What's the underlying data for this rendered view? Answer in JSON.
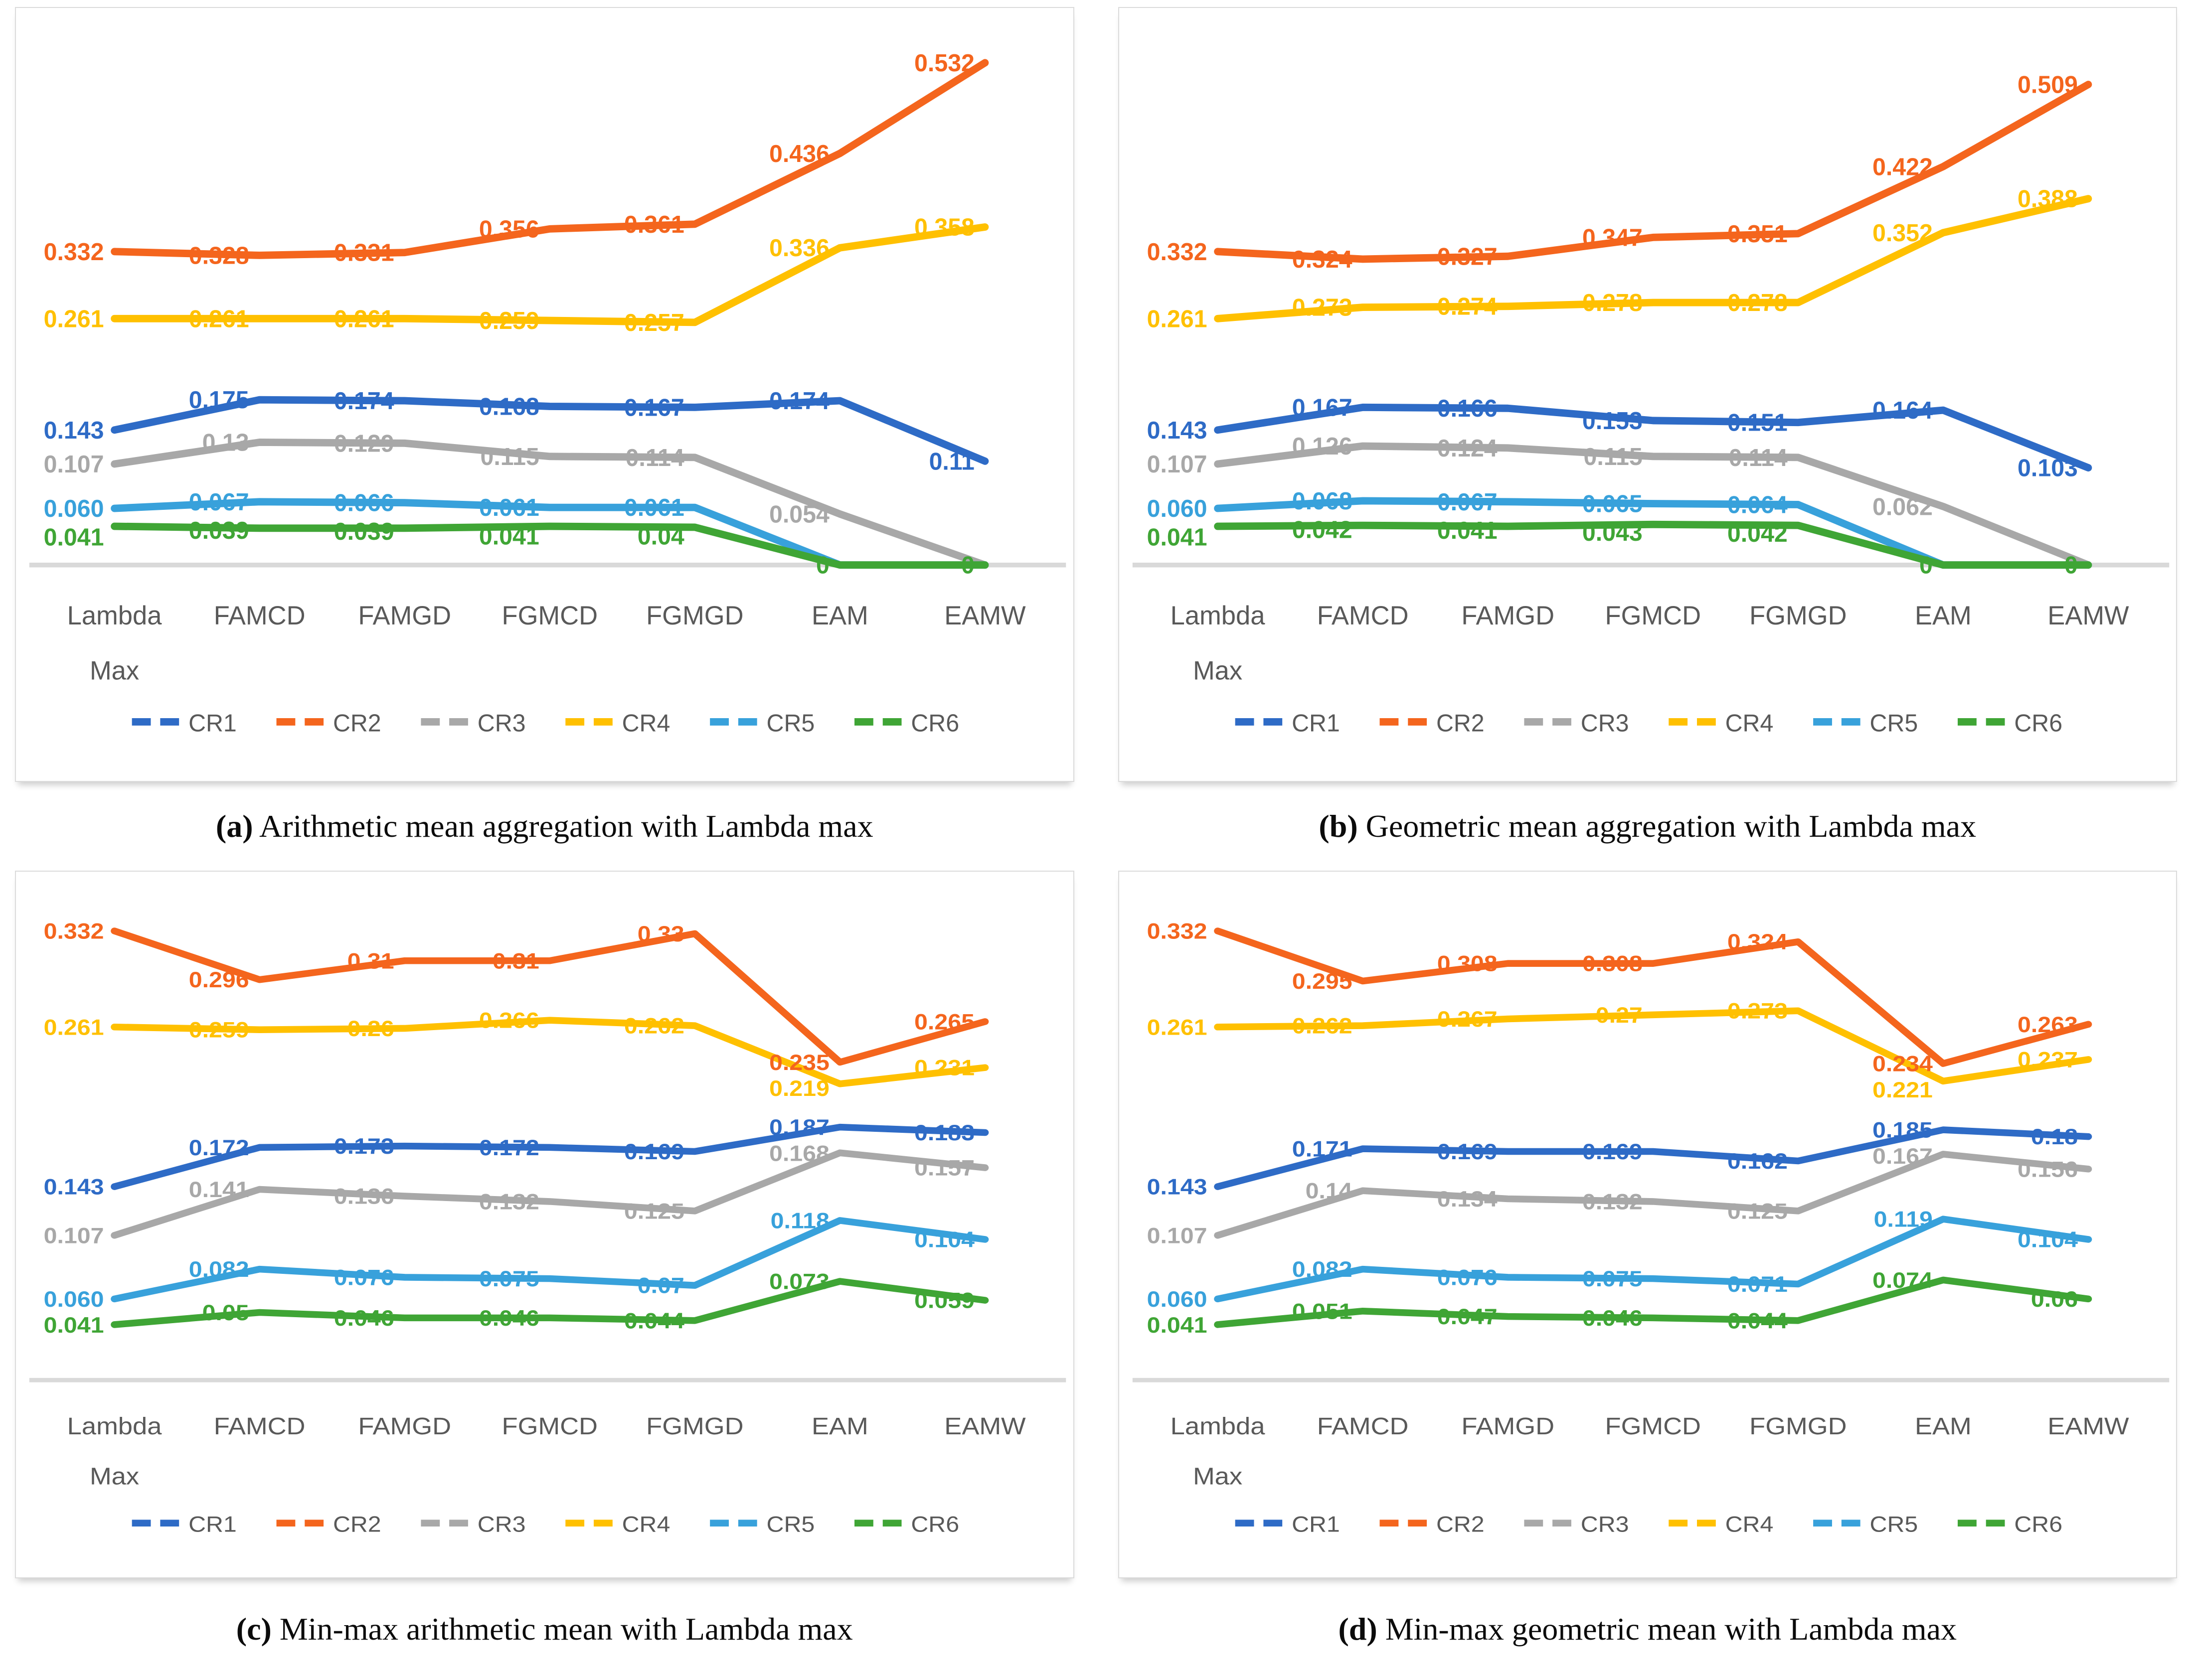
{
  "colors": {
    "CR1": "#2E6BC6",
    "CR2": "#F4651D",
    "CR3": "#A8A8A8",
    "CR4": "#FFC000",
    "CR5": "#38A1DB",
    "CR6": "#3FA535",
    "axis_line": "#D9D9D9",
    "axis_text": "#595959"
  },
  "chart_data": [
    {
      "type": "line",
      "caption_label": "(a)",
      "caption_text": " Arithmetic mean aggregation with Lambda max",
      "categories": [
        "Lambda Max",
        "FAMCD",
        "FAMGD",
        "FGMCD",
        "FGMGD",
        "EAM",
        "EAMW"
      ],
      "ylim": [
        0,
        0.55
      ],
      "grid": false,
      "legend_position": "bottom",
      "legend": [
        "CR1",
        "CR2",
        "CR3",
        "CR4",
        "CR5",
        "CR6"
      ],
      "series": [
        {
          "name": "CR1",
          "values": [
            0.143,
            0.175,
            0.174,
            0.168,
            0.167,
            0.174,
            0.11
          ],
          "labels": [
            "0.143",
            "0.175",
            "0.174",
            "0.168",
            "0.167",
            "0.174",
            "0.11"
          ]
        },
        {
          "name": "CR2",
          "values": [
            0.332,
            0.328,
            0.331,
            0.356,
            0.361,
            0.436,
            0.532
          ],
          "labels": [
            "0.332",
            "0.328",
            "0.331",
            "0.356",
            "0.361",
            "0.436",
            "0.532"
          ]
        },
        {
          "name": "CR3",
          "values": [
            0.107,
            0.13,
            0.129,
            0.115,
            0.114,
            0.054,
            0
          ],
          "labels": [
            "0.107",
            "0.13",
            "0.129",
            "0.115",
            "0.114",
            "0.054",
            ""
          ]
        },
        {
          "name": "CR4",
          "values": [
            0.261,
            0.261,
            0.261,
            0.259,
            0.257,
            0.336,
            0.358
          ],
          "labels": [
            "0.261",
            "0.261",
            "0.261",
            "0.259",
            "0.257",
            "0.336",
            "0.358"
          ]
        },
        {
          "name": "CR5",
          "values": [
            0.06,
            0.067,
            0.066,
            0.061,
            0.061,
            0,
            0
          ],
          "labels": [
            "0.060",
            "0.067",
            "0.066",
            "0.061",
            "0.061",
            "",
            ""
          ]
        },
        {
          "name": "CR6",
          "values": [
            0.041,
            0.039,
            0.039,
            0.041,
            0.04,
            0,
            0
          ],
          "labels": [
            "0.041",
            "0.039",
            "0.039",
            "0.041",
            "0.04",
            "0",
            "0"
          ]
        }
      ]
    },
    {
      "type": "line",
      "caption_label": "(b)",
      "caption_text": " Geometric mean aggregation with Lambda max",
      "categories": [
        "Lambda Max",
        "FAMCD",
        "FAMGD",
        "FGMCD",
        "FGMGD",
        "EAM",
        "EAMW"
      ],
      "ylim": [
        0,
        0.55
      ],
      "grid": false,
      "legend_position": "bottom",
      "legend": [
        "CR1",
        "CR2",
        "CR3",
        "CR4",
        "CR5",
        "CR6"
      ],
      "series": [
        {
          "name": "CR1",
          "values": [
            0.143,
            0.167,
            0.166,
            0.153,
            0.151,
            0.164,
            0.103
          ],
          "labels": [
            "0.143",
            "0.167",
            "0.166",
            "0.153",
            "0.151",
            "0.164",
            "0.103"
          ]
        },
        {
          "name": "CR2",
          "values": [
            0.332,
            0.324,
            0.327,
            0.347,
            0.351,
            0.422,
            0.509
          ],
          "labels": [
            "0.332",
            "0.324",
            "0.327",
            "0.347",
            "0.351",
            "0.422",
            "0.509"
          ]
        },
        {
          "name": "CR3",
          "values": [
            0.107,
            0.126,
            0.124,
            0.115,
            0.114,
            0.062,
            0
          ],
          "labels": [
            "0.107",
            "0.126",
            "0.124",
            "0.115",
            "0.114",
            "0.062",
            ""
          ]
        },
        {
          "name": "CR4",
          "values": [
            0.261,
            0.273,
            0.274,
            0.278,
            0.278,
            0.352,
            0.388
          ],
          "labels": [
            "0.261",
            "0.273",
            "0.274",
            "0.278",
            "0.278",
            "0.352",
            "0.388"
          ]
        },
        {
          "name": "CR5",
          "values": [
            0.06,
            0.068,
            0.067,
            0.065,
            0.064,
            0,
            0
          ],
          "labels": [
            "0.060",
            "0.068",
            "0.067",
            "0.065",
            "0.064",
            "",
            ""
          ]
        },
        {
          "name": "CR6",
          "values": [
            0.041,
            0.042,
            0.041,
            0.043,
            0.042,
            0,
            0
          ],
          "labels": [
            "0.041",
            "0.042",
            "0.041",
            "0.043",
            "0.042",
            "0",
            "0"
          ]
        }
      ]
    },
    {
      "type": "line",
      "caption_label": "(c)",
      "caption_text": " Min-max arithmetic mean with Lambda max",
      "categories": [
        "Lambda Max",
        "FAMCD",
        "FAMGD",
        "FGMCD",
        "FGMGD",
        "EAM",
        "EAMW"
      ],
      "ylim": [
        0,
        0.35
      ],
      "grid": false,
      "legend_position": "bottom",
      "legend": [
        "CR1",
        "CR2",
        "CR3",
        "CR4",
        "CR5",
        "CR6"
      ],
      "series": [
        {
          "name": "CR1",
          "values": [
            0.143,
            0.172,
            0.173,
            0.172,
            0.169,
            0.187,
            0.183
          ],
          "labels": [
            "0.143",
            "0.172",
            "0.173",
            "0.172",
            "0.169",
            "0.187",
            "0.183"
          ]
        },
        {
          "name": "CR2",
          "values": [
            0.332,
            0.296,
            0.31,
            0.31,
            0.33,
            0.235,
            0.265
          ],
          "labels": [
            "0.332",
            "0.296",
            "0.31",
            "0.31",
            "0.33",
            "0.235",
            "0.265"
          ]
        },
        {
          "name": "CR3",
          "values": [
            0.107,
            0.141,
            0.136,
            0.132,
            0.125,
            0.168,
            0.157
          ],
          "labels": [
            "0.107",
            "0.141",
            "0.136",
            "0.132",
            "0.125",
            "0.168",
            "0.157"
          ]
        },
        {
          "name": "CR4",
          "values": [
            0.261,
            0.259,
            0.26,
            0.266,
            0.262,
            0.219,
            0.231
          ],
          "labels": [
            "0.261",
            "0.259",
            "0.26",
            "0.266",
            "0.262",
            "0.219",
            "0.231"
          ]
        },
        {
          "name": "CR5",
          "values": [
            0.06,
            0.082,
            0.076,
            0.075,
            0.07,
            0.118,
            0.104
          ],
          "labels": [
            "0.060",
            "0.082",
            "0.076",
            "0.075",
            "0.07",
            "0.118",
            "0.104"
          ]
        },
        {
          "name": "CR6",
          "values": [
            0.041,
            0.05,
            0.046,
            0.046,
            0.044,
            0.073,
            0.059
          ],
          "labels": [
            "0.041",
            "0.05",
            "0.046",
            "0.046",
            "0.044",
            "0.073",
            "0.059"
          ]
        }
      ]
    },
    {
      "type": "line",
      "caption_label": "(d)",
      "caption_text": " Min-max geometric mean with Lambda max",
      "categories": [
        "Lambda Max",
        "FAMCD",
        "FAMGD",
        "FGMCD",
        "FGMGD",
        "EAM",
        "EAMW"
      ],
      "ylim": [
        0,
        0.35
      ],
      "grid": false,
      "legend_position": "bottom",
      "legend": [
        "CR1",
        "CR2",
        "CR3",
        "CR4",
        "CR5",
        "CR6"
      ],
      "series": [
        {
          "name": "CR1",
          "values": [
            0.143,
            0.171,
            0.169,
            0.169,
            0.162,
            0.185,
            0.18
          ],
          "labels": [
            "0.143",
            "0.171",
            "0.169",
            "0.169",
            "0.162",
            "0.185",
            "0.18"
          ]
        },
        {
          "name": "CR2",
          "values": [
            0.332,
            0.295,
            0.308,
            0.308,
            0.324,
            0.234,
            0.263
          ],
          "labels": [
            "0.332",
            "0.295",
            "0.308",
            "0.308",
            "0.324",
            "0.234",
            "0.263"
          ]
        },
        {
          "name": "CR3",
          "values": [
            0.107,
            0.14,
            0.134,
            0.132,
            0.125,
            0.167,
            0.156
          ],
          "labels": [
            "0.107",
            "0.14",
            "0.134",
            "0.132",
            "0.125",
            "0.167",
            "0.156"
          ]
        },
        {
          "name": "CR4",
          "values": [
            0.261,
            0.262,
            0.267,
            0.27,
            0.273,
            0.221,
            0.237
          ],
          "labels": [
            "0.261",
            "0.262",
            "0.267",
            "0.27",
            "0.273",
            "0.221",
            "0.237"
          ]
        },
        {
          "name": "CR5",
          "values": [
            0.06,
            0.082,
            0.076,
            0.075,
            0.071,
            0.119,
            0.104
          ],
          "labels": [
            "0.060",
            "0.082",
            "0.076",
            "0.075",
            "0.071",
            "0.119",
            "0.104"
          ]
        },
        {
          "name": "CR6",
          "values": [
            0.041,
            0.051,
            0.047,
            0.046,
            0.044,
            0.074,
            0.06
          ],
          "labels": [
            "0.041",
            "0.051",
            "0.047",
            "0.046",
            "0.044",
            "0.074",
            "0.06"
          ]
        }
      ]
    }
  ]
}
